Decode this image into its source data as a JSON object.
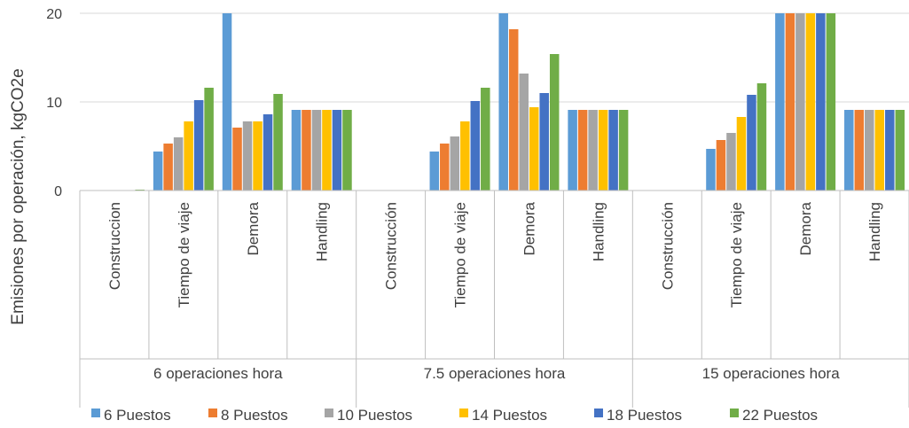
{
  "chart_data": {
    "type": "bar",
    "ylabel": "Emisiones por operación, kgCO2e",
    "ylim": [
      0,
      20
    ],
    "yticks": [
      0,
      10,
      20
    ],
    "grid": true,
    "legend_position": "bottom",
    "groups": [
      {
        "label": "6 operaciones hora",
        "categories": [
          "Construccion",
          "Tiempo de viaje",
          "Demora",
          "Handling"
        ]
      },
      {
        "label": "7.5 operaciones hora",
        "categories": [
          "Construcción",
          "Tiempo de viaje",
          "Demora",
          "Handling"
        ]
      },
      {
        "label": "15 operaciones hora",
        "categories": [
          "Construcción",
          "Tiempo de viaje",
          "Demora",
          "Handling"
        ]
      }
    ],
    "series": [
      {
        "name": "6 Puestos",
        "color": "#5B9BD5",
        "values": [
          0,
          4.4,
          20,
          9.1,
          0,
          4.4,
          20,
          9.1,
          0,
          4.7,
          20,
          9.1
        ]
      },
      {
        "name": "8 Puestos",
        "color": "#ED7D31",
        "values": [
          0,
          5.3,
          7.1,
          9.1,
          0,
          5.3,
          18.2,
          9.1,
          0,
          5.7,
          20,
          9.1
        ]
      },
      {
        "name": "10 Puestos",
        "color": "#A5A5A5",
        "values": [
          0,
          6.0,
          7.8,
          9.1,
          0,
          6.1,
          13.2,
          9.1,
          0,
          6.5,
          20,
          9.1
        ]
      },
      {
        "name": "14 Puestos",
        "color": "#FFC000",
        "values": [
          0,
          7.8,
          7.8,
          9.1,
          0,
          7.8,
          9.4,
          9.1,
          0,
          8.3,
          20,
          9.1
        ]
      },
      {
        "name": "18 Puestos",
        "color": "#4472C4",
        "values": [
          0,
          10.2,
          8.6,
          9.1,
          0,
          10.1,
          11.0,
          9.1,
          0,
          10.8,
          20,
          9.1
        ]
      },
      {
        "name": "22 Puestos",
        "color": "#70AD47",
        "values": [
          0.1,
          11.6,
          10.9,
          9.1,
          0,
          11.6,
          15.4,
          9.1,
          0,
          12.1,
          20,
          9.1
        ]
      }
    ]
  }
}
